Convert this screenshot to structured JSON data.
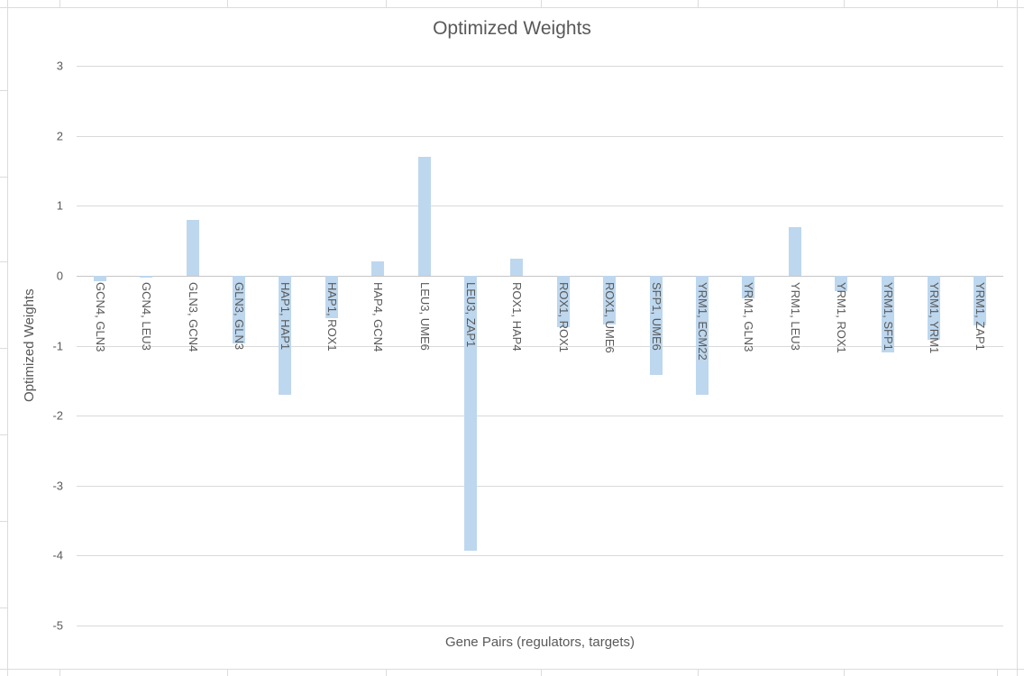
{
  "chart_data": {
    "type": "bar",
    "title": "Optimized Weights",
    "xlabel": "Gene Pairs (regulators, targets)",
    "ylabel": "Optimized Weights",
    "ylim": [
      -5,
      3
    ],
    "yticks": [
      3,
      2,
      1,
      0,
      -1,
      -2,
      -3,
      -4,
      -5
    ],
    "grid": true,
    "legend_position": "none",
    "categories": [
      "GCN4, GLN3",
      "GCN4, LEU3",
      "GLN3, GCN4",
      "GLN3, GLN3",
      "HAP1, HAP1",
      "HAP1, ROX1",
      "HAP4, GCN4",
      "LEU3, UME6",
      "LEU3, ZAP1",
      "ROX1, HAP4",
      "ROX1, ROX1",
      "ROX1, UME6",
      "SFP1, UME6",
      "YRM1, ECM22",
      "YRM1, GLN3",
      "YRM1, LEU3",
      "YRM1, ROX1",
      "YRM1, SFP1",
      "YRM1, YRM1",
      "YRM1, ZAP1"
    ],
    "values": [
      -0.08,
      -0.03,
      0.8,
      -0.97,
      -1.7,
      -0.6,
      0.21,
      1.7,
      -3.93,
      0.25,
      -0.73,
      -0.69,
      -1.42,
      -1.7,
      -0.32,
      0.7,
      -0.22,
      -1.1,
      -0.91,
      -0.71
    ],
    "colors": {
      "bar_fill": "#bdd7ee",
      "gridline": "#d9d9d9",
      "axis_line": "#c6c6c6",
      "text": "#595959"
    }
  }
}
